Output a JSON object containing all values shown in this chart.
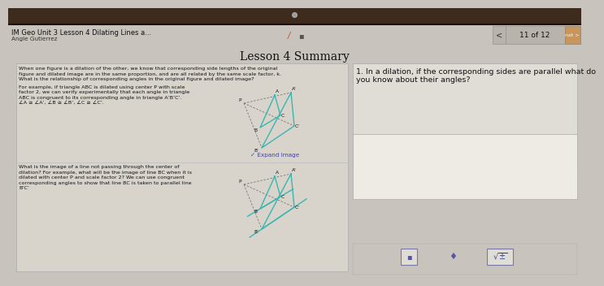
{
  "bg_top_color": "#3d2b1e",
  "bg_main_color": "#c8c3bc",
  "header_bg": "#c8c3bc",
  "title_text": "Lesson 4 Summary",
  "header_title": "IM Geo Unit 3 Lesson 4 Dilating Lines a...",
  "header_subtitle": "Angle Gutierrez",
  "nav_text": "11 of 12",
  "left_panel_bg": "#d8d4cc",
  "right_panel_bg": "#d8d4cc",
  "left_text_top": [
    "When one figure is a dilation of the other, we know that corresponding side lengths of the original",
    "figure and dilated image are in the same proportion, and are all related by the same scale factor, k.",
    "What is the relationship of corresponding angles in the original figure and dilated image?"
  ],
  "left_text_mid": [
    "For example, if triangle ABC is dilated using center P with scale",
    "factor 2, we can verify experimentally that each angle in triangle",
    "ABC is congruent to its corresponding angle in triangle A’B’C’.",
    "∠A ≅ ∠A’, ∠B ≅ ∠B’, ∠C ≅ ∠C’."
  ],
  "expand_image_text": "✓ Expand Image",
  "left_text2_lines": [
    "What is the image of a line not passing through the center of",
    "dilation? For example, what will be the image of line BC when it is",
    "dilated with center P and scale factor 2? We can use congruent",
    "corresponding angles to show that line BC is taken to parallel line",
    "B’C’"
  ],
  "question_text": "1. In a dilation, if the corresponding sides are parallel what do\nyou know about their angles?",
  "nav_bg": "#b8b4ac",
  "right_answer_bg": "#d0cdc6",
  "bottom_toolbar_bg": "#c8c3bc"
}
